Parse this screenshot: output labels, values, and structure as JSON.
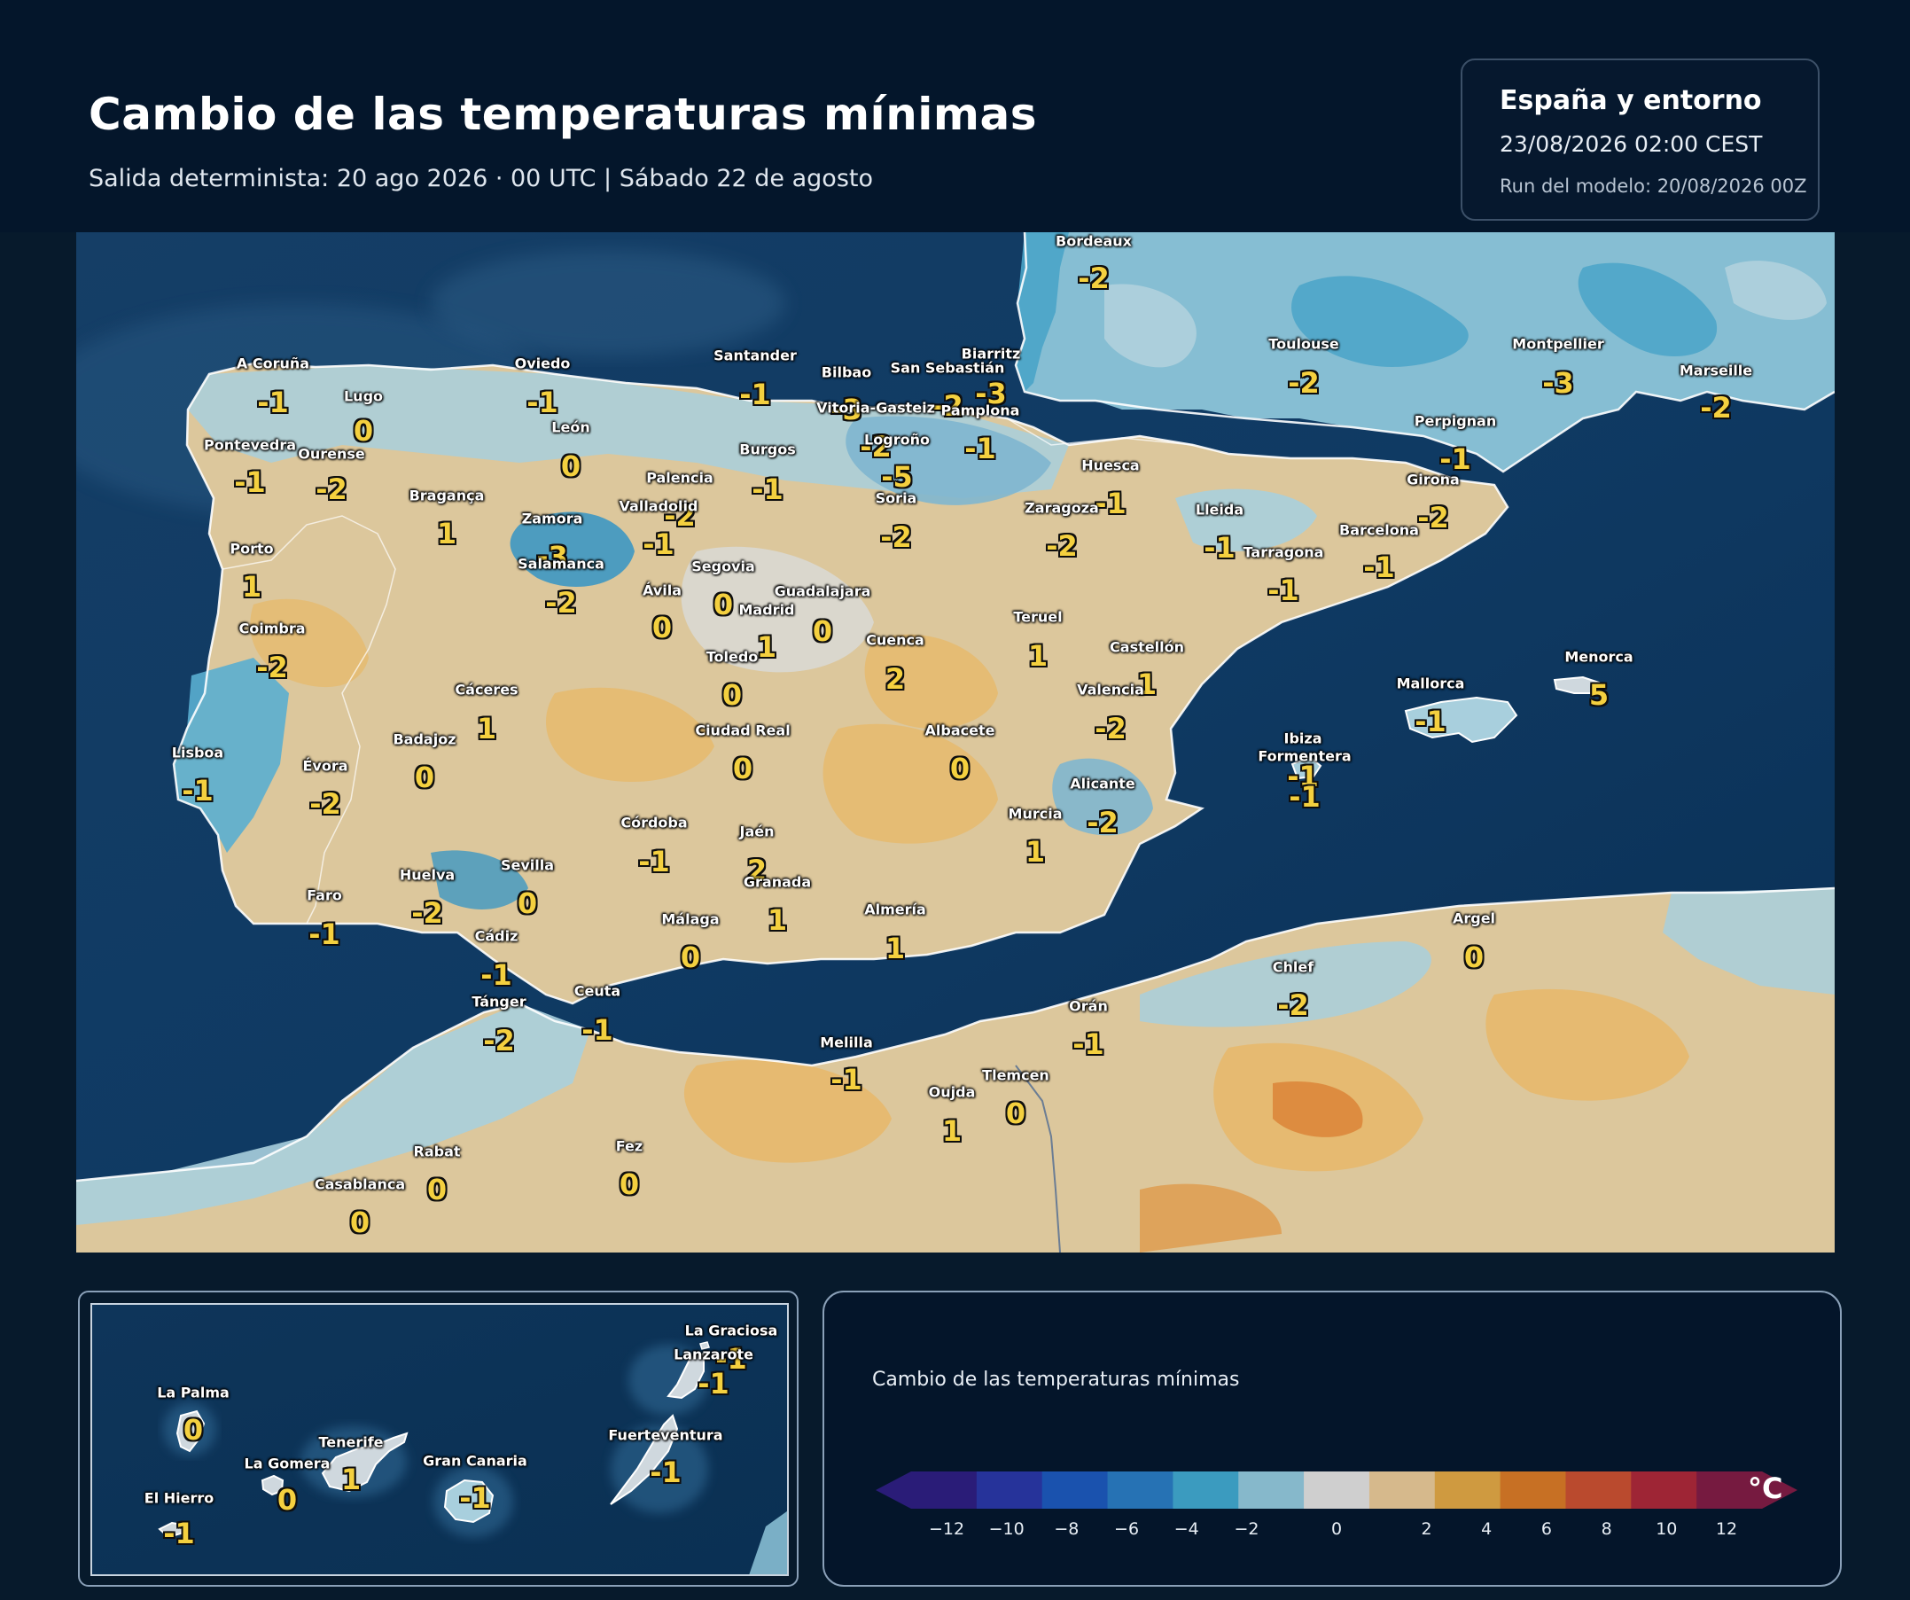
{
  "header": {
    "title": "Cambio de las temperaturas mínimas",
    "subtitle": "Salida determinista: 20 ago 2026 · 00 UTC  |  Sábado 22 de agosto"
  },
  "info": {
    "region": "España y entorno",
    "valid": "23/08/2026  02:00 CEST",
    "run": "Run del modelo: 20/08/2026 00Z"
  },
  "main_map": {
    "cities": [
      {
        "name": "Bordeaux",
        "value": "-2"
      },
      {
        "name": "A Coruña",
        "value": "-1"
      },
      {
        "name": "Lugo",
        "value": "0"
      },
      {
        "name": "Oviedo",
        "value": "-1"
      },
      {
        "name": "León",
        "value": "0"
      },
      {
        "name": "Santander",
        "value": "-1"
      },
      {
        "name": "Bilbao",
        "value": "-3"
      },
      {
        "name": "San Sebastián",
        "value": "-2"
      },
      {
        "name": "Biarritz",
        "value": "-3"
      },
      {
        "name": "Vitoria-Gasteiz",
        "value": "-2"
      },
      {
        "name": "Pamplona",
        "value": "-1"
      },
      {
        "name": "Logroño",
        "value": "-5"
      },
      {
        "name": "Toulouse",
        "value": "-2"
      },
      {
        "name": "Montpellier",
        "value": "-3"
      },
      {
        "name": "Marseille",
        "value": "-2"
      },
      {
        "name": "Pontevedra",
        "value": "-1"
      },
      {
        "name": "Ourense",
        "value": "-2"
      },
      {
        "name": "Burgos",
        "value": "-1"
      },
      {
        "name": "Palencia",
        "value": "-2"
      },
      {
        "name": "Perpignan",
        "value": "-1"
      },
      {
        "name": "Huesca",
        "value": "-1"
      },
      {
        "name": "Bragança",
        "value": "1"
      },
      {
        "name": "Valladolid",
        "value": "-1"
      },
      {
        "name": "Soria",
        "value": "-2"
      },
      {
        "name": "Girona",
        "value": "-2"
      },
      {
        "name": "Zaragoza",
        "value": "-2"
      },
      {
        "name": "Lleida",
        "value": "-1"
      },
      {
        "name": "Zamora",
        "value": "-3"
      },
      {
        "name": "Barcelona",
        "value": "-1"
      },
      {
        "name": "Porto",
        "value": "1"
      },
      {
        "name": "Tarragona",
        "value": "-1"
      },
      {
        "name": "Salamanca",
        "value": "-2"
      },
      {
        "name": "Segovia",
        "value": "0"
      },
      {
        "name": "Ávila",
        "value": "0"
      },
      {
        "name": "Guadalajara",
        "value": "0"
      },
      {
        "name": "Madrid",
        "value": "1"
      },
      {
        "name": "Teruel",
        "value": "1"
      },
      {
        "name": "Coimbra",
        "value": "-2"
      },
      {
        "name": "Cuenca",
        "value": "2"
      },
      {
        "name": "Toledo",
        "value": "0"
      },
      {
        "name": "Castellón",
        "value": "1"
      },
      {
        "name": "Menorca",
        "value": "5"
      },
      {
        "name": "Mallorca",
        "value": "-1"
      },
      {
        "name": "Cáceres",
        "value": "1"
      },
      {
        "name": "Valencia",
        "value": "-2"
      },
      {
        "name": "Ciudad Real",
        "value": "0"
      },
      {
        "name": "Albacete",
        "value": "0"
      },
      {
        "name": "Badajoz",
        "value": "0"
      },
      {
        "name": "Ibiza",
        "value": "-1"
      },
      {
        "name": "Lisboa",
        "value": "-1"
      },
      {
        "name": "Formentera",
        "value": "-1"
      },
      {
        "name": "Évora",
        "value": "-2"
      },
      {
        "name": "Alicante",
        "value": "-2"
      },
      {
        "name": "Murcia",
        "value": "1"
      },
      {
        "name": "Córdoba",
        "value": "-1"
      },
      {
        "name": "Jaén",
        "value": "2"
      },
      {
        "name": "Huelva",
        "value": "-2"
      },
      {
        "name": "Sevilla",
        "value": "0"
      },
      {
        "name": "Granada",
        "value": "1"
      },
      {
        "name": "Faro",
        "value": "-1"
      },
      {
        "name": "Almería",
        "value": "1"
      },
      {
        "name": "Málaga",
        "value": "0"
      },
      {
        "name": "Argel",
        "value": "0"
      },
      {
        "name": "Cádiz",
        "value": "-1"
      },
      {
        "name": "Chlef",
        "value": "-2"
      },
      {
        "name": "Ceuta",
        "value": "-1"
      },
      {
        "name": "Tánger",
        "value": "-2"
      },
      {
        "name": "Orán",
        "value": "-1"
      },
      {
        "name": "Melilla",
        "value": "-1"
      },
      {
        "name": "Tlemcen",
        "value": "0"
      },
      {
        "name": "Oujda",
        "value": "1"
      },
      {
        "name": "Rabat",
        "value": "0"
      },
      {
        "name": "Fez",
        "value": "0"
      },
      {
        "name": "Casablanca",
        "value": "0"
      }
    ]
  },
  "inset_map": {
    "islands": [
      {
        "name": "La Graciosa",
        "value": "-1"
      },
      {
        "name": "Lanzarote",
        "value": "-1"
      },
      {
        "name": "La Palma",
        "value": "0"
      },
      {
        "name": "Fuerteventura",
        "value": "-1"
      },
      {
        "name": "Tenerife",
        "value": "1"
      },
      {
        "name": "La Gomera",
        "value": "0"
      },
      {
        "name": "Gran Canaria",
        "value": "-1"
      },
      {
        "name": "El Hierro",
        "value": "-1"
      }
    ]
  },
  "legend": {
    "title": "Cambio de las temperaturas mínimas",
    "unit": "°C",
    "ticks": [
      "−12",
      "−10",
      "−8",
      "−6",
      "−4",
      "−2",
      "0",
      "2",
      "4",
      "6",
      "8",
      "10",
      "12"
    ],
    "colors": [
      "#2a1c78",
      "#26339a",
      "#1a52ae",
      "#2672b4",
      "#3b9bbf",
      "#86b8cb",
      "#cfcfcf",
      "#d6b98c",
      "#cf9a40",
      "#c77024",
      "#ba4a2e",
      "#9e2535",
      "#761a40"
    ]
  }
}
